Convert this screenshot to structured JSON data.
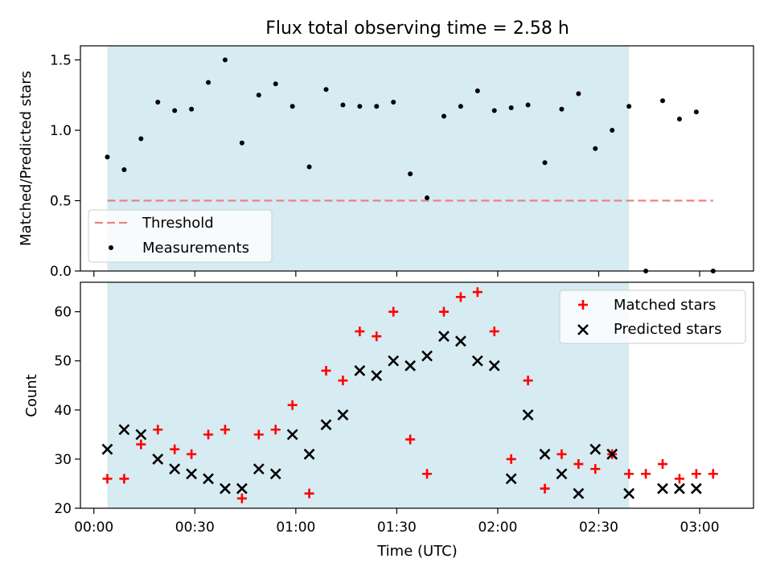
{
  "figure": {
    "title": "Flux total observing time = 2.58 h"
  },
  "chart_data": [
    {
      "type": "scatter",
      "ylabel": "Matched/Predicted stars",
      "xlabel": "",
      "xlim": [
        -4,
        196
      ],
      "ylim": [
        0,
        1.6
      ],
      "yticks": [
        0.0,
        0.5,
        1.0,
        1.5
      ],
      "ytick_labels": [
        "0.0",
        "0.5",
        "1.0",
        "1.5"
      ],
      "shaded_interval": {
        "x_start": 4,
        "x_end": 159,
        "color": "#add8e6"
      },
      "threshold": {
        "label": "Threshold",
        "value": 0.5,
        "x_start": 4,
        "x_end": 184,
        "color": "#f08080"
      },
      "series": [
        {
          "name": "Measurements",
          "color": "#000000",
          "x": [
            4,
            9,
            14,
            19,
            24,
            29,
            34,
            39,
            44,
            49,
            54,
            59,
            64,
            69,
            74,
            79,
            84,
            89,
            94,
            99,
            104,
            109,
            114,
            119,
            124,
            129,
            134,
            139,
            144,
            149,
            154,
            159,
            164,
            169,
            174,
            179,
            184
          ],
          "y": [
            0.81,
            0.72,
            0.94,
            1.2,
            1.14,
            1.15,
            1.34,
            1.5,
            0.91,
            1.25,
            1.33,
            1.17,
            0.74,
            1.29,
            1.18,
            1.17,
            1.17,
            1.2,
            0.69,
            0.52,
            1.1,
            1.17,
            1.28,
            1.14,
            1.16,
            1.18,
            0.77,
            1.15,
            1.26,
            0.87,
            1.0,
            1.17,
            0.0,
            1.21,
            1.08,
            1.13,
            0.0
          ]
        }
      ],
      "legend": {
        "placement": "lower-left",
        "entries": [
          "Threshold",
          "Measurements"
        ]
      }
    },
    {
      "type": "scatter",
      "ylabel": "Count",
      "xlabel": "Time (UTC)",
      "xlim": [
        -4,
        196
      ],
      "ylim": [
        20,
        66
      ],
      "yticks": [
        20,
        30,
        40,
        50,
        60
      ],
      "ytick_labels": [
        "20",
        "30",
        "40",
        "50",
        "60"
      ],
      "xticks": [
        0,
        30,
        60,
        90,
        120,
        150,
        180
      ],
      "xtick_labels": [
        "00:00",
        "00:30",
        "01:00",
        "01:30",
        "02:00",
        "02:30",
        "03:00"
      ],
      "shaded_interval": {
        "x_start": 4,
        "x_end": 159,
        "color": "#add8e6"
      },
      "series": [
        {
          "name": "Matched stars",
          "marker": "+",
          "color": "#ff0000",
          "x": [
            4,
            9,
            14,
            19,
            24,
            29,
            34,
            39,
            44,
            49,
            54,
            59,
            64,
            69,
            74,
            79,
            84,
            89,
            94,
            99,
            104,
            109,
            114,
            119,
            124,
            129,
            134,
            139,
            144,
            149,
            154,
            159,
            164,
            169,
            174,
            179,
            184
          ],
          "y": [
            26,
            26,
            33,
            36,
            32,
            31,
            35,
            36,
            22,
            35,
            36,
            41,
            23,
            48,
            46,
            56,
            55,
            60,
            34,
            27,
            60,
            63,
            64,
            56,
            30,
            46,
            24,
            31,
            29,
            28,
            31,
            27,
            27,
            29,
            26,
            27,
            27
          ]
        },
        {
          "name": "Predicted stars",
          "marker": "x",
          "color": "#000000",
          "x": [
            4,
            9,
            14,
            19,
            24,
            29,
            34,
            39,
            44,
            49,
            54,
            59,
            64,
            69,
            74,
            79,
            84,
            89,
            94,
            99,
            104,
            109,
            114,
            119,
            124,
            129,
            134,
            139,
            144,
            149,
            154,
            159,
            169,
            174,
            179
          ],
          "y": [
            32,
            36,
            35,
            30,
            28,
            27,
            26,
            24,
            24,
            28,
            27,
            35,
            31,
            37,
            39,
            48,
            47,
            50,
            49,
            51,
            55,
            54,
            50,
            49,
            26,
            39,
            31,
            27,
            23,
            32,
            31,
            23,
            24,
            24,
            24
          ]
        }
      ],
      "legend": {
        "placement": "top-right",
        "entries": [
          "Matched stars",
          "Predicted stars"
        ]
      }
    }
  ]
}
